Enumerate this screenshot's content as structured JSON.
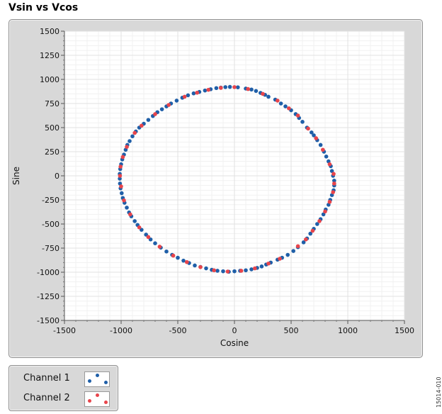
{
  "figure_id": "15014-010",
  "legend": {
    "items": [
      {
        "label": "Channel 1",
        "color": "#1f5fa8"
      },
      {
        "label": "Channel 2",
        "color": "#e8454b"
      }
    ]
  },
  "colors": {
    "plot_bg": "#ffffff",
    "grid_major": "#e2e2e2",
    "grid_minor": "#f1f1f1",
    "panel_bg": "#d8d8d8",
    "channel_1": "#1f5fa8",
    "channel_2": "#e8454b"
  },
  "chart_data": {
    "type": "scatter",
    "title": "Vsin vs Vcos",
    "xlabel": "Cosine",
    "ylabel": "Sine",
    "xlim": [
      -1500,
      1500
    ],
    "ylim": [
      -1500,
      1500
    ],
    "xticks": [
      "-1500",
      "-1000",
      "-500",
      "0",
      "500",
      "1000",
      "1500"
    ],
    "yticks": [
      "1500",
      "1250",
      "1000",
      "750",
      "500",
      "250",
      "0",
      "-250",
      "-500",
      "-750",
      "-1000",
      "-1250",
      "-1500"
    ],
    "grid": true,
    "legend_position": "below-left",
    "series": [
      {
        "name": "Channel 1",
        "color": "#1f5fa8",
        "points": [
          [
            -80,
            920
          ],
          [
            -40,
            922
          ],
          [
            30,
            918
          ],
          [
            100,
            905
          ],
          [
            150,
            895
          ],
          [
            190,
            880
          ],
          [
            230,
            860
          ],
          [
            270,
            840
          ],
          [
            300,
            820
          ],
          [
            360,
            790
          ],
          [
            410,
            750
          ],
          [
            450,
            720
          ],
          [
            500,
            680
          ],
          [
            540,
            640
          ],
          [
            570,
            600
          ],
          [
            600,
            560
          ],
          [
            640,
            500
          ],
          [
            680,
            450
          ],
          [
            700,
            420
          ],
          [
            730,
            370
          ],
          [
            760,
            320
          ],
          [
            790,
            250
          ],
          [
            810,
            200
          ],
          [
            830,
            150
          ],
          [
            850,
            100
          ],
          [
            860,
            50
          ],
          [
            870,
            0
          ],
          [
            880,
            -50
          ],
          [
            880,
            -100
          ],
          [
            875,
            -150
          ],
          [
            860,
            -200
          ],
          [
            845,
            -250
          ],
          [
            830,
            -300
          ],
          [
            805,
            -350
          ],
          [
            785,
            -400
          ],
          [
            760,
            -450
          ],
          [
            730,
            -500
          ],
          [
            700,
            -550
          ],
          [
            670,
            -600
          ],
          [
            640,
            -650
          ],
          [
            610,
            -690
          ],
          [
            560,
            -740
          ],
          [
            520,
            -780
          ],
          [
            470,
            -820
          ],
          [
            420,
            -850
          ],
          [
            380,
            -870
          ],
          [
            320,
            -900
          ],
          [
            280,
            -920
          ],
          [
            240,
            -940
          ],
          [
            200,
            -955
          ],
          [
            150,
            -970
          ],
          [
            100,
            -980
          ],
          [
            50,
            -985
          ],
          [
            0,
            -990
          ],
          [
            -50,
            -995
          ],
          [
            -100,
            -990
          ],
          [
            -150,
            -985
          ],
          [
            -200,
            -975
          ],
          [
            -250,
            -960
          ],
          [
            -300,
            -945
          ],
          [
            -350,
            -930
          ],
          [
            -400,
            -905
          ],
          [
            -450,
            -880
          ],
          [
            -500,
            -850
          ],
          [
            -550,
            -820
          ],
          [
            -600,
            -785
          ],
          [
            -650,
            -745
          ],
          [
            -700,
            -700
          ],
          [
            -740,
            -660
          ],
          [
            -780,
            -610
          ],
          [
            -820,
            -560
          ],
          [
            -855,
            -510
          ],
          [
            -880,
            -470
          ],
          [
            -910,
            -420
          ],
          [
            -930,
            -380
          ],
          [
            -950,
            -330
          ],
          [
            -970,
            -280
          ],
          [
            -985,
            -230
          ],
          [
            -995,
            -180
          ],
          [
            -1005,
            -130
          ],
          [
            -1010,
            -80
          ],
          [
            -1012,
            -30
          ],
          [
            -1012,
            20
          ],
          [
            -1008,
            70
          ],
          [
            -1000,
            120
          ],
          [
            -990,
            170
          ],
          [
            -975,
            220
          ],
          [
            -960,
            270
          ],
          [
            -945,
            320
          ],
          [
            -925,
            360
          ],
          [
            -900,
            410
          ],
          [
            -870,
            460
          ],
          [
            -840,
            500
          ],
          [
            -800,
            540
          ],
          [
            -760,
            580
          ],
          [
            -720,
            620
          ],
          [
            -680,
            660
          ],
          [
            -640,
            690
          ],
          [
            -600,
            720
          ],
          [
            -560,
            750
          ],
          [
            -510,
            780
          ],
          [
            -460,
            810
          ],
          [
            -410,
            835
          ],
          [
            -360,
            855
          ],
          [
            -310,
            870
          ],
          [
            -260,
            885
          ],
          [
            -210,
            898
          ],
          [
            -160,
            910
          ],
          [
            -120,
            915
          ]
        ]
      },
      {
        "name": "Channel 2",
        "color": "#e8454b",
        "points": [
          [
            -120,
            912
          ],
          [
            0,
            920
          ],
          [
            120,
            900
          ],
          [
            250,
            850
          ],
          [
            380,
            780
          ],
          [
            480,
            700
          ],
          [
            560,
            625
          ],
          [
            650,
            490
          ],
          [
            720,
            390
          ],
          [
            780,
            270
          ],
          [
            840,
            120
          ],
          [
            875,
            20
          ],
          [
            880,
            -80
          ],
          [
            870,
            -170
          ],
          [
            840,
            -270
          ],
          [
            800,
            -370
          ],
          [
            750,
            -470
          ],
          [
            690,
            -570
          ],
          [
            630,
            -660
          ],
          [
            560,
            -730
          ],
          [
            400,
            -860
          ],
          [
            300,
            -910
          ],
          [
            180,
            -960
          ],
          [
            60,
            -985
          ],
          [
            -60,
            -993
          ],
          [
            -180,
            -980
          ],
          [
            -300,
            -947
          ],
          [
            -420,
            -895
          ],
          [
            -540,
            -828
          ],
          [
            -660,
            -735
          ],
          [
            -760,
            -635
          ],
          [
            -840,
            -535
          ],
          [
            -920,
            -400
          ],
          [
            -975,
            -255
          ],
          [
            -1000,
            -110
          ],
          [
            -1010,
            0
          ],
          [
            -1005,
            95
          ],
          [
            -985,
            195
          ],
          [
            -950,
            300
          ],
          [
            -880,
            445
          ],
          [
            -820,
            520
          ],
          [
            -700,
            640
          ],
          [
            -580,
            735
          ],
          [
            -440,
            820
          ],
          [
            -330,
            862
          ],
          [
            -230,
            892
          ]
        ]
      }
    ]
  }
}
